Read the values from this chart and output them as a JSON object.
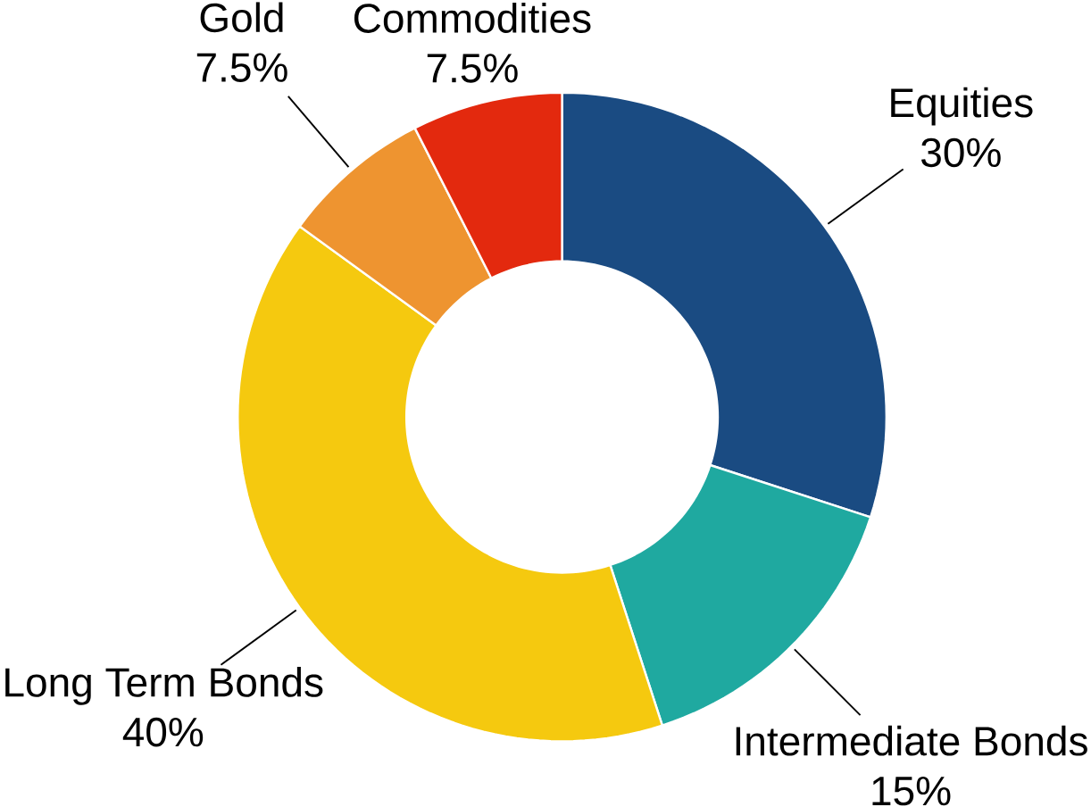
{
  "chart_data": {
    "type": "donut",
    "categories": [
      "Equities",
      "Intermediate Bonds",
      "Long Term Bonds",
      "Gold",
      "Commodities"
    ],
    "values": [
      30,
      15,
      40,
      7.5,
      7.5
    ],
    "value_labels": [
      "30%",
      "15%",
      "40%",
      "7.5%",
      "7.5%"
    ],
    "colors": [
      "#1a4b82",
      "#1fa9a0",
      "#f5c90f",
      "#ee9430",
      "#e3290e"
    ]
  }
}
